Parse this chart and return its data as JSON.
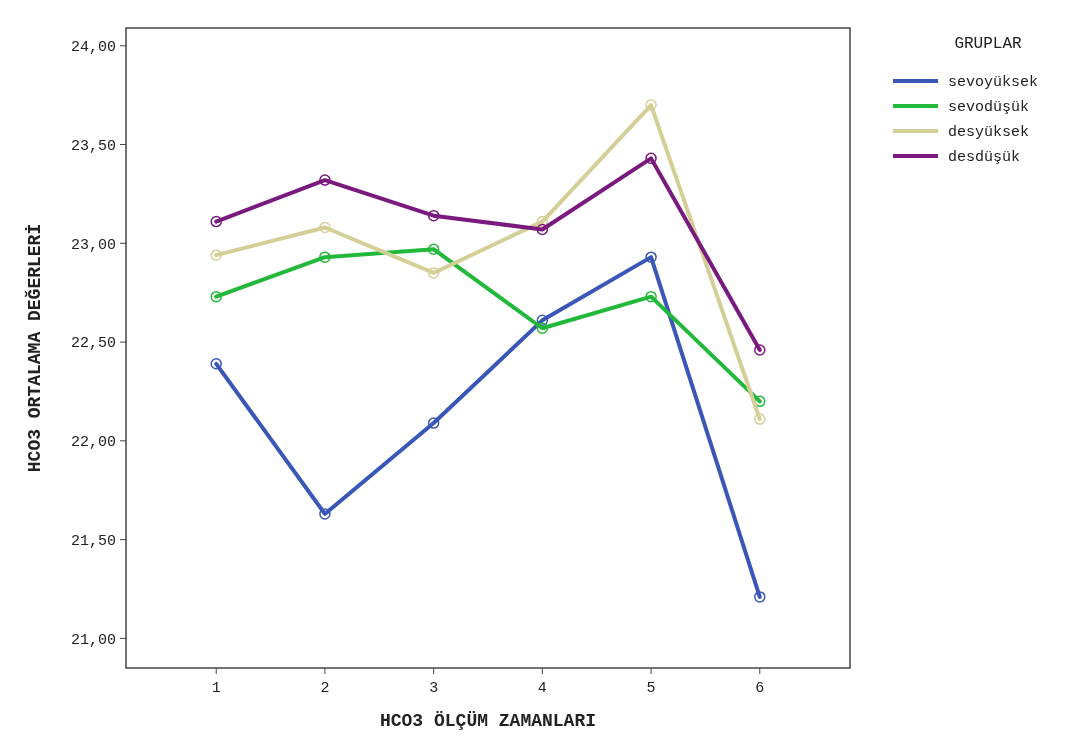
{
  "chart_data": {
    "type": "line",
    "xlabel": "HCO3 ÖLÇÜM ZAMANLARI",
    "ylabel": "HCO3 ORTALAMA DEĞERLERİ",
    "legend_title": "GRUPLAR",
    "legend": "right",
    "marker": "circle",
    "grid": false,
    "x": [
      1,
      2,
      3,
      4,
      5,
      6
    ],
    "xlim": [
      0.17,
      6.83
    ],
    "xticks": [
      1,
      2,
      3,
      4,
      5,
      6
    ],
    "ylim": [
      20.85,
      24.09
    ],
    "yticks": [
      {
        "value": 21,
        "label": "21,00"
      },
      {
        "value": 21.5,
        "label": "21,50"
      },
      {
        "value": 22,
        "label": "22,00"
      },
      {
        "value": 22.5,
        "label": "22,50"
      },
      {
        "value": 23,
        "label": "23,00"
      },
      {
        "value": 23.5,
        "label": "23,50"
      },
      {
        "value": 24,
        "label": "24,00"
      }
    ],
    "series": [
      {
        "name": "sevoyüksek",
        "color": "#3a57b8",
        "values": [
          22.39,
          21.63,
          22.09,
          22.61,
          22.93,
          21.21
        ]
      },
      {
        "name": "sevodüşük",
        "color": "#22b83a",
        "values": [
          22.73,
          22.93,
          22.97,
          22.57,
          22.73,
          22.2
        ]
      },
      {
        "name": "desyüksek",
        "color": "#d4cf96",
        "values": [
          22.94,
          23.08,
          22.85,
          23.11,
          23.7,
          22.11
        ]
      },
      {
        "name": "desdüşük",
        "color": "#7a1a7e",
        "values": [
          23.11,
          23.32,
          23.14,
          23.07,
          23.43,
          22.46
        ]
      }
    ]
  }
}
